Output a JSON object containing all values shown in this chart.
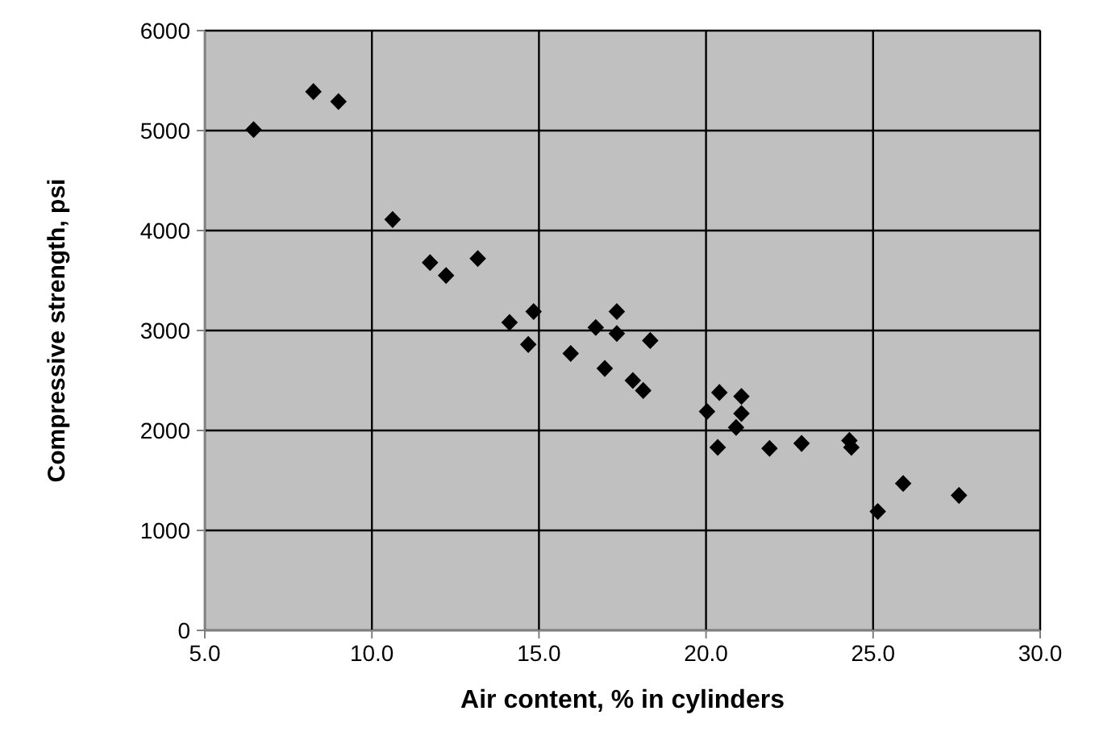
{
  "chart_data": {
    "type": "scatter",
    "xlabel": "Air content, % in cylinders",
    "ylabel": "Compressive strength, psi",
    "x": [
      6.46,
      8.25,
      9.0,
      10.62,
      11.74,
      12.22,
      13.17,
      14.12,
      14.84,
      14.68,
      15.95,
      16.7,
      17.33,
      17.33,
      16.97,
      18.33,
      17.81,
      18.12,
      20.03,
      20.4,
      21.06,
      21.06,
      20.9,
      20.35,
      21.9,
      22.86,
      24.29,
      24.35,
      25.9,
      25.14,
      27.57
    ],
    "series": [
      {
        "color": "#000000",
        "values": [
          5010,
          5390,
          5290,
          4110,
          3680,
          3550,
          3720,
          3080,
          3190,
          2860,
          2770,
          3030,
          3190,
          2970,
          2620,
          2900,
          2500,
          2400,
          2190,
          2380,
          2340,
          2170,
          2030,
          1830,
          1820,
          1870,
          1900,
          1830,
          1470,
          1190,
          1350
        ]
      }
    ],
    "xlim": [
      5,
      30
    ],
    "xticks": [
      {
        "value": 5,
        "label": "5.0"
      },
      {
        "value": 10,
        "label": "10.0"
      },
      {
        "value": 15,
        "label": "15.0"
      },
      {
        "value": 20,
        "label": "20.0"
      },
      {
        "value": 25,
        "label": "25.0"
      },
      {
        "value": 30,
        "label": "30.0"
      }
    ],
    "ylim": [
      0,
      6000
    ],
    "yticks": [
      0,
      1000,
      2000,
      3000,
      4000,
      5000,
      6000
    ],
    "grid": true,
    "marker": "diamond"
  }
}
